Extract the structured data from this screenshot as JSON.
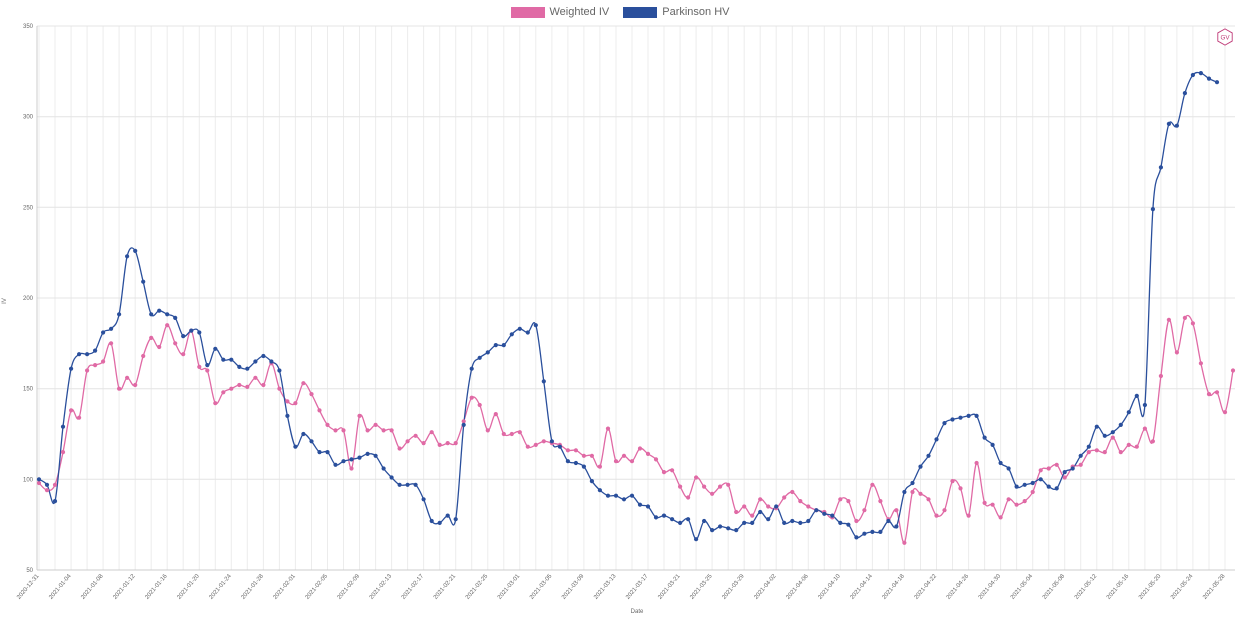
{
  "chart_data": {
    "type": "line",
    "title": "",
    "xlabel": "Date",
    "ylabel": "IV",
    "ylim": [
      50,
      350
    ],
    "yticks": [
      50,
      100,
      150,
      200,
      250,
      300,
      350
    ],
    "grid": true,
    "legend_position": "top-center",
    "start_date": "2020-12-31",
    "series": [
      {
        "name": "Weighted IV",
        "color": "#e06aa5",
        "values": [
          98,
          94,
          97,
          115,
          138,
          134,
          160,
          163,
          165,
          175,
          150,
          156,
          152,
          168,
          178,
          173,
          185,
          175,
          169,
          182,
          162,
          160,
          142,
          148,
          150,
          152,
          151,
          156,
          152,
          164,
          150,
          143,
          142,
          153,
          147,
          138,
          130,
          127,
          127,
          106,
          135,
          127,
          130,
          127,
          127,
          117,
          121,
          124,
          120,
          126,
          119,
          120,
          120,
          132,
          145,
          141,
          127,
          136,
          125,
          125,
          126,
          118,
          119,
          121,
          120,
          119,
          116,
          116,
          113,
          113,
          107,
          128,
          110,
          113,
          110,
          117,
          114,
          111,
          104,
          105,
          96,
          90,
          101,
          96,
          92,
          96,
          97,
          82,
          85,
          80,
          89,
          85,
          84,
          90,
          93,
          88,
          85,
          83,
          82,
          79,
          89,
          88,
          77,
          83,
          97,
          88,
          78,
          83,
          65,
          93,
          92,
          89,
          80,
          83,
          99,
          95,
          80,
          109,
          87,
          86,
          79,
          89,
          86,
          88,
          93,
          105,
          106,
          108,
          101,
          107,
          108,
          115,
          116,
          115,
          123,
          115,
          119,
          118,
          128,
          121,
          157,
          188,
          170,
          189,
          186,
          164,
          147,
          148,
          137,
          160
        ]
      },
      {
        "name": "Parkinson HV",
        "color": "#2a4f9c",
        "values": [
          100,
          97,
          88,
          129,
          161,
          169,
          169,
          171,
          181,
          183,
          191,
          223,
          226,
          209,
          191,
          193,
          191,
          189,
          179,
          182,
          181,
          163,
          172,
          166,
          166,
          162,
          161,
          165,
          168,
          165,
          160,
          135,
          118,
          125,
          121,
          115,
          115,
          108,
          110,
          111,
          112,
          114,
          113,
          106,
          101,
          97,
          97,
          97,
          89,
          77,
          76,
          80,
          78,
          130,
          161,
          167,
          170,
          174,
          174,
          180,
          183,
          181,
          185,
          154,
          121,
          118,
          110,
          109,
          107,
          99,
          94,
          91,
          91,
          89,
          91,
          86,
          85,
          79,
          80,
          78,
          76,
          78,
          67,
          77,
          72,
          74,
          73,
          72,
          76,
          76,
          82,
          78,
          85,
          76,
          77,
          76,
          77,
          83,
          81,
          80,
          76,
          75,
          68,
          70,
          71,
          71,
          77,
          74,
          93,
          98,
          107,
          113,
          122,
          131,
          133,
          134,
          135,
          135,
          123,
          119,
          109,
          106,
          96,
          97,
          98,
          100,
          96,
          95,
          104,
          106,
          113,
          118,
          129,
          124,
          126,
          130,
          137,
          146,
          141,
          249,
          272,
          296,
          295,
          313,
          323,
          324,
          321,
          319
        ]
      }
    ]
  },
  "legend": {
    "item1": "Weighted IV",
    "item2": "Parkinson HV"
  },
  "logo": {
    "text": "GV",
    "icon": "gv-hexagon-logo"
  }
}
